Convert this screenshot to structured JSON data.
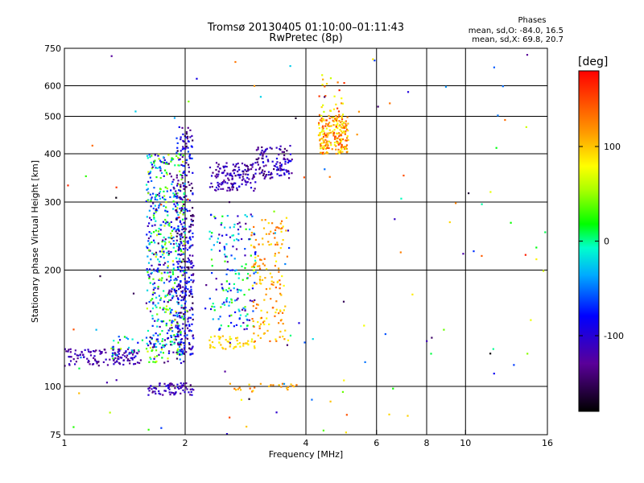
{
  "header": {
    "title_line1": "Tromsø 20130405 01:10:00–01:11:43",
    "title_line2": "RwPretec (8p)"
  },
  "phases_box": {
    "heading": "Phases",
    "line_o": "mean, sd,O: -84.0, 16.5",
    "line_x": "mean, sd,X:  69.8, 20.7"
  },
  "colorbar": {
    "label": "[deg]",
    "range": [
      -180,
      180
    ],
    "ticks": [
      100,
      0,
      -100
    ]
  },
  "chart_data": {
    "type": "scatter",
    "xlabel": "Frequency [MHz]",
    "ylabel": "Stationary phase Virtual Height [km]",
    "x_scale": "log",
    "y_scale": "log",
    "xlim": [
      1,
      16
    ],
    "ylim": [
      75,
      750
    ],
    "x_ticks": [
      1,
      2,
      4,
      6,
      8,
      10,
      16
    ],
    "y_ticks": [
      75,
      100,
      200,
      300,
      400,
      500,
      600,
      750
    ],
    "x_gridlines": [
      2,
      4,
      6,
      8,
      10
    ],
    "y_gridlines": [
      100,
      200,
      300,
      400,
      500,
      600
    ],
    "clusters": [
      {
        "x": [
          1.0,
          1.55
        ],
        "y": [
          113,
          125
        ],
        "phase": [
          -140,
          -100
        ],
        "n": 130
      },
      {
        "x": [
          1.3,
          1.6
        ],
        "y": [
          118,
          135
        ],
        "phase": [
          -120,
          60
        ],
        "n": 30
      },
      {
        "x": [
          1.6,
          2.0
        ],
        "y": [
          115,
          400
        ],
        "phase": [
          -150,
          70
        ],
        "n": 620
      },
      {
        "x": [
          1.9,
          2.1
        ],
        "y": [
          120,
          470
        ],
        "phase": [
          -160,
          -60
        ],
        "n": 330
      },
      {
        "x": [
          1.6,
          2.1
        ],
        "y": [
          95,
          102
        ],
        "phase": [
          -140,
          -90
        ],
        "n": 70
      },
      {
        "x": [
          2.3,
          3.0
        ],
        "y": [
          140,
          280
        ],
        "phase": [
          -140,
          40
        ],
        "n": 180
      },
      {
        "x": [
          2.3,
          3.0
        ],
        "y": [
          125,
          135
        ],
        "phase": [
          70,
          110
        ],
        "n": 50
      },
      {
        "x": [
          2.3,
          3.0
        ],
        "y": [
          320,
          380
        ],
        "phase": [
          -150,
          -90
        ],
        "n": 140
      },
      {
        "x": [
          2.9,
          3.6
        ],
        "y": [
          130,
          270
        ],
        "phase": [
          80,
          140
        ],
        "n": 150
      },
      {
        "x": [
          3.0,
          3.7
        ],
        "y": [
          345,
          420
        ],
        "phase": [
          -150,
          -80
        ],
        "n": 110
      },
      {
        "x": [
          2.5,
          3.8
        ],
        "y": [
          97,
          102
        ],
        "phase": [
          90,
          140
        ],
        "n": 25
      },
      {
        "x": [
          4.3,
          5.1
        ],
        "y": [
          400,
          500
        ],
        "phase": [
          70,
          160
        ],
        "n": 210
      },
      {
        "x": [
          4.3,
          5.0
        ],
        "y": [
          500,
          650
        ],
        "phase": [
          60,
          170
        ],
        "n": 30
      }
    ],
    "scattered_points": 120
  }
}
